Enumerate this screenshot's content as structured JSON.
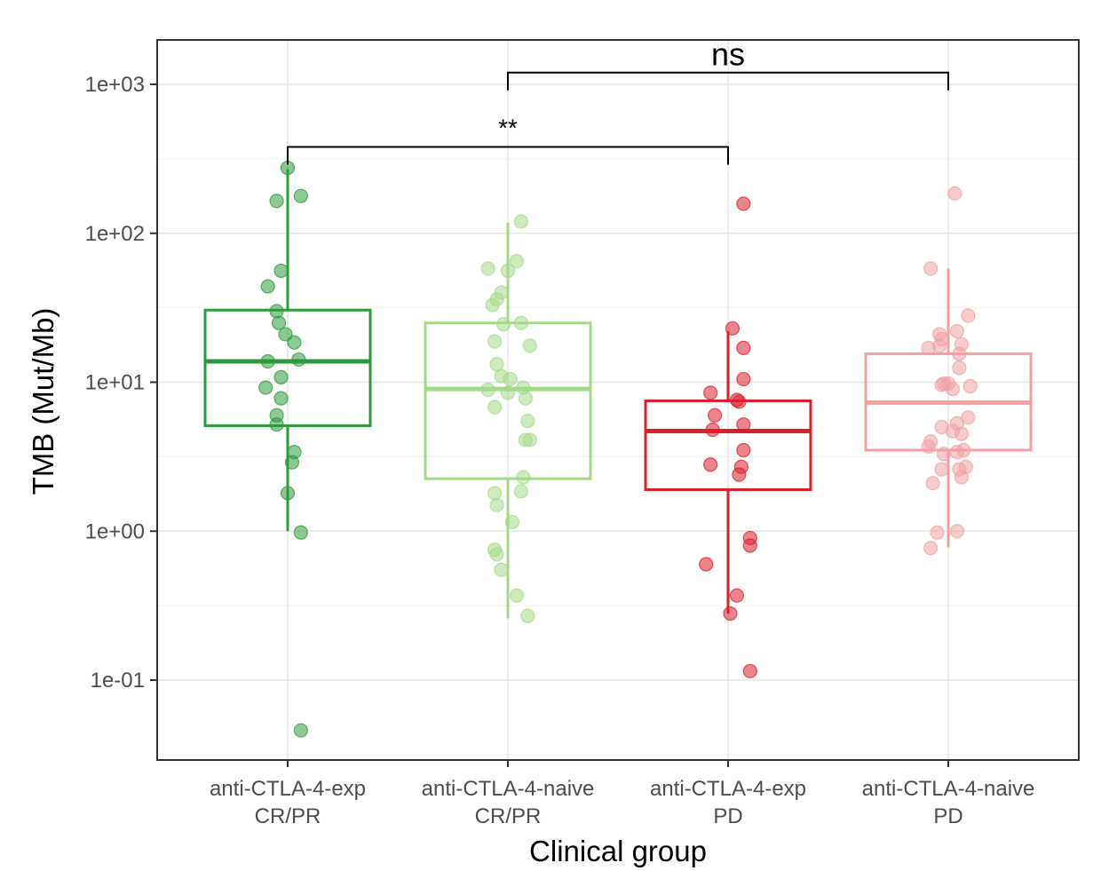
{
  "chart_data": {
    "type": "boxplot",
    "title": "",
    "xlabel": "Clinical group",
    "ylabel": "TMB (Mut/Mb)",
    "yscale": "log10",
    "ylim": [
      0.03,
      1800
    ],
    "yticks": [
      {
        "value": 0.1,
        "label": "1e-01"
      },
      {
        "value": 1,
        "label": "1e+00"
      },
      {
        "value": 10,
        "label": "1e+01"
      },
      {
        "value": 100,
        "label": "1e+02"
      },
      {
        "value": 1000,
        "label": "1e+03"
      }
    ],
    "grid": true,
    "categories": [
      {
        "line1": "anti-CTLA-4-exp",
        "line2": "CR/PR"
      },
      {
        "line1": "anti-CTLA-4-naive",
        "line2": "CR/PR"
      },
      {
        "line1": "anti-CTLA-4-exp",
        "line2": "PD"
      },
      {
        "line1": "anti-CTLA-4-naive",
        "line2": "PD"
      }
    ],
    "groups": [
      {
        "name": "anti-CTLA-4-exp CR/PR",
        "color": "#2e9a3e",
        "box": {
          "whisker_low": 1.0,
          "q1": 5.1,
          "median": 13.8,
          "q3": 30.5,
          "whisker_high": 270
        },
        "points": [
          {
            "jitter": 0.0,
            "value": 275
          },
          {
            "jitter": 0.06,
            "value": 178
          },
          {
            "jitter": -0.05,
            "value": 165
          },
          {
            "jitter": -0.03,
            "value": 56
          },
          {
            "jitter": -0.09,
            "value": 44
          },
          {
            "jitter": -0.05,
            "value": 30
          },
          {
            "jitter": -0.04,
            "value": 25
          },
          {
            "jitter": -0.01,
            "value": 21
          },
          {
            "jitter": 0.03,
            "value": 18.5
          },
          {
            "jitter": 0.05,
            "value": 14.2
          },
          {
            "jitter": -0.09,
            "value": 13.8
          },
          {
            "jitter": -0.03,
            "value": 10.8
          },
          {
            "jitter": -0.1,
            "value": 9.2
          },
          {
            "jitter": -0.03,
            "value": 7.8
          },
          {
            "jitter": -0.05,
            "value": 6.0
          },
          {
            "jitter": -0.05,
            "value": 5.2
          },
          {
            "jitter": 0.03,
            "value": 3.4
          },
          {
            "jitter": 0.02,
            "value": 2.9
          },
          {
            "jitter": 0.0,
            "value": 1.8
          },
          {
            "jitter": 0.06,
            "value": 0.98
          },
          {
            "jitter": 0.06,
            "value": 0.046
          }
        ]
      },
      {
        "name": "anti-CTLA-4-naive CR/PR",
        "color": "#a6d88b",
        "box": {
          "whisker_low": 0.26,
          "q1": 2.25,
          "median": 9.0,
          "q3": 25,
          "whisker_high": 118
        },
        "points": [
          {
            "jitter": 0.06,
            "value": 120
          },
          {
            "jitter": 0.04,
            "value": 65
          },
          {
            "jitter": -0.09,
            "value": 58
          },
          {
            "jitter": 0.0,
            "value": 56
          },
          {
            "jitter": -0.03,
            "value": 40
          },
          {
            "jitter": -0.05,
            "value": 36
          },
          {
            "jitter": -0.07,
            "value": 33
          },
          {
            "jitter": 0.06,
            "value": 25
          },
          {
            "jitter": -0.02,
            "value": 24.5
          },
          {
            "jitter": -0.06,
            "value": 18.8
          },
          {
            "jitter": 0.1,
            "value": 17.6
          },
          {
            "jitter": -0.05,
            "value": 13.2
          },
          {
            "jitter": -0.03,
            "value": 11
          },
          {
            "jitter": 0.01,
            "value": 10.5
          },
          {
            "jitter": -0.09,
            "value": 8.9
          },
          {
            "jitter": 0.0,
            "value": 8.5
          },
          {
            "jitter": 0.07,
            "value": 9.2
          },
          {
            "jitter": 0.08,
            "value": 7.8
          },
          {
            "jitter": -0.06,
            "value": 6.8
          },
          {
            "jitter": 0.09,
            "value": 5.5
          },
          {
            "jitter": 0.08,
            "value": 4.1
          },
          {
            "jitter": 0.1,
            "value": 4.1
          },
          {
            "jitter": 0.07,
            "value": 2.3
          },
          {
            "jitter": -0.06,
            "value": 1.8
          },
          {
            "jitter": 0.06,
            "value": 1.85
          },
          {
            "jitter": -0.05,
            "value": 1.5
          },
          {
            "jitter": 0.02,
            "value": 1.15
          },
          {
            "jitter": -0.06,
            "value": 0.75
          },
          {
            "jitter": -0.05,
            "value": 0.7
          },
          {
            "jitter": -0.03,
            "value": 0.55
          },
          {
            "jitter": 0.04,
            "value": 0.37
          },
          {
            "jitter": 0.09,
            "value": 0.27
          }
        ]
      },
      {
        "name": "anti-CTLA-4-exp PD",
        "color": "#dc1f2d",
        "box": {
          "whisker_low": 0.28,
          "q1": 1.9,
          "median": 4.7,
          "q3": 7.5,
          "whisker_high": 22
        },
        "points": [
          {
            "jitter": 0.07,
            "value": 158
          },
          {
            "jitter": 0.02,
            "value": 23
          },
          {
            "jitter": 0.07,
            "value": 17
          },
          {
            "jitter": 0.07,
            "value": 10.5
          },
          {
            "jitter": -0.08,
            "value": 8.5
          },
          {
            "jitter": 0.04,
            "value": 7.6
          },
          {
            "jitter": 0.05,
            "value": 7.4
          },
          {
            "jitter": -0.06,
            "value": 6.0
          },
          {
            "jitter": 0.07,
            "value": 5.2
          },
          {
            "jitter": -0.07,
            "value": 4.8
          },
          {
            "jitter": 0.07,
            "value": 3.5
          },
          {
            "jitter": -0.08,
            "value": 2.8
          },
          {
            "jitter": 0.06,
            "value": 2.7
          },
          {
            "jitter": 0.05,
            "value": 2.4
          },
          {
            "jitter": 0.1,
            "value": 0.9
          },
          {
            "jitter": 0.1,
            "value": 0.8
          },
          {
            "jitter": -0.1,
            "value": 0.6
          },
          {
            "jitter": 0.04,
            "value": 0.37
          },
          {
            "jitter": 0.01,
            "value": 0.28
          },
          {
            "jitter": 0.1,
            "value": 0.115
          }
        ]
      },
      {
        "name": "anti-CTLA-4-naive PD",
        "color": "#f2a0a3",
        "box": {
          "whisker_low": 0.78,
          "q1": 3.5,
          "median": 7.3,
          "q3": 15.5,
          "whisker_high": 58
        },
        "points": [
          {
            "jitter": 0.03,
            "value": 185
          },
          {
            "jitter": -0.08,
            "value": 58
          },
          {
            "jitter": 0.09,
            "value": 28
          },
          {
            "jitter": 0.04,
            "value": 22
          },
          {
            "jitter": -0.04,
            "value": 21
          },
          {
            "jitter": -0.03,
            "value": 19.5
          },
          {
            "jitter": 0.06,
            "value": 18
          },
          {
            "jitter": -0.04,
            "value": 17.5
          },
          {
            "jitter": -0.09,
            "value": 17
          },
          {
            "jitter": 0.05,
            "value": 15.5
          },
          {
            "jitter": 0.05,
            "value": 12.5
          },
          {
            "jitter": -0.02,
            "value": 9.8
          },
          {
            "jitter": 0.0,
            "value": 9.8
          },
          {
            "jitter": -0.03,
            "value": 9.6
          },
          {
            "jitter": 0.1,
            "value": 9.4
          },
          {
            "jitter": 0.02,
            "value": 9.0
          },
          {
            "jitter": -0.03,
            "value": 5.0
          },
          {
            "jitter": 0.09,
            "value": 5.8
          },
          {
            "jitter": 0.04,
            "value": 5.3
          },
          {
            "jitter": 0.02,
            "value": 4.7
          },
          {
            "jitter": 0.06,
            "value": 4.5
          },
          {
            "jitter": -0.08,
            "value": 4.0
          },
          {
            "jitter": -0.09,
            "value": 3.7
          },
          {
            "jitter": 0.07,
            "value": 3.5
          },
          {
            "jitter": -0.02,
            "value": 3.3
          },
          {
            "jitter": 0.04,
            "value": 3.4
          },
          {
            "jitter": 0.08,
            "value": 2.7
          },
          {
            "jitter": 0.05,
            "value": 2.6
          },
          {
            "jitter": -0.03,
            "value": 2.6
          },
          {
            "jitter": 0.06,
            "value": 2.3
          },
          {
            "jitter": -0.07,
            "value": 2.1
          },
          {
            "jitter": -0.05,
            "value": 0.98
          },
          {
            "jitter": 0.04,
            "value": 1.0
          },
          {
            "jitter": -0.08,
            "value": 0.77
          }
        ]
      }
    ],
    "comparisons": [
      {
        "from": 0,
        "to": 2,
        "label": "**",
        "y": 380
      },
      {
        "from": 1,
        "to": 3,
        "label": "ns",
        "y": 1200
      }
    ]
  }
}
